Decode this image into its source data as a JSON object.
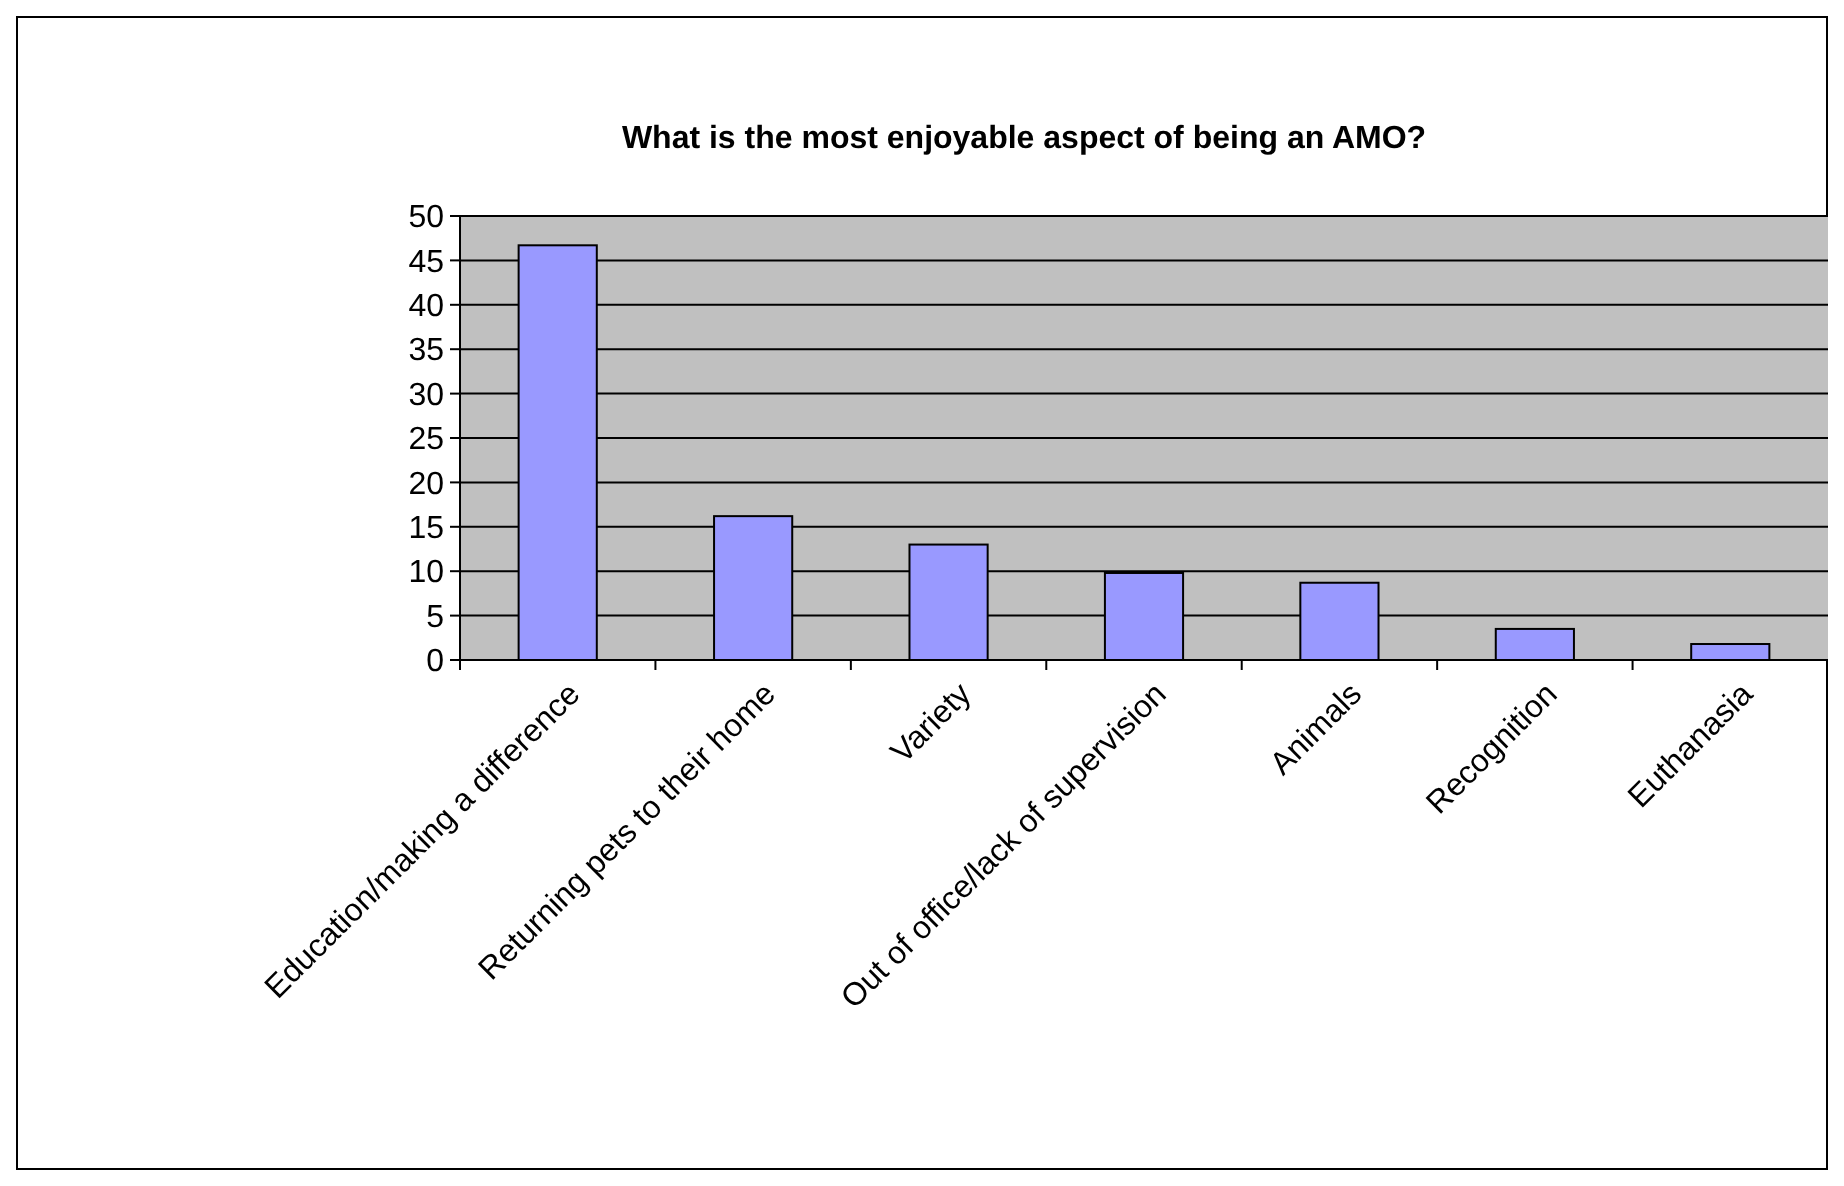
{
  "chart_data": {
    "type": "bar",
    "title": "What is the most enjoyable aspect of being an AMO?",
    "categories": [
      "Education/making a difference",
      "Returning pets to their home",
      "Variety",
      "Out of office/lack of supervision",
      "Animals",
      "Recognition",
      "Euthanasia"
    ],
    "values": [
      46.7,
      16.2,
      13,
      9.8,
      8.7,
      3.5,
      1.8
    ],
    "color": "#9999ff",
    "ylim": [
      0,
      50
    ],
    "yticks": [
      0,
      5,
      10,
      15,
      20,
      25,
      30,
      35,
      40,
      45,
      50
    ],
    "grid": "y"
  }
}
